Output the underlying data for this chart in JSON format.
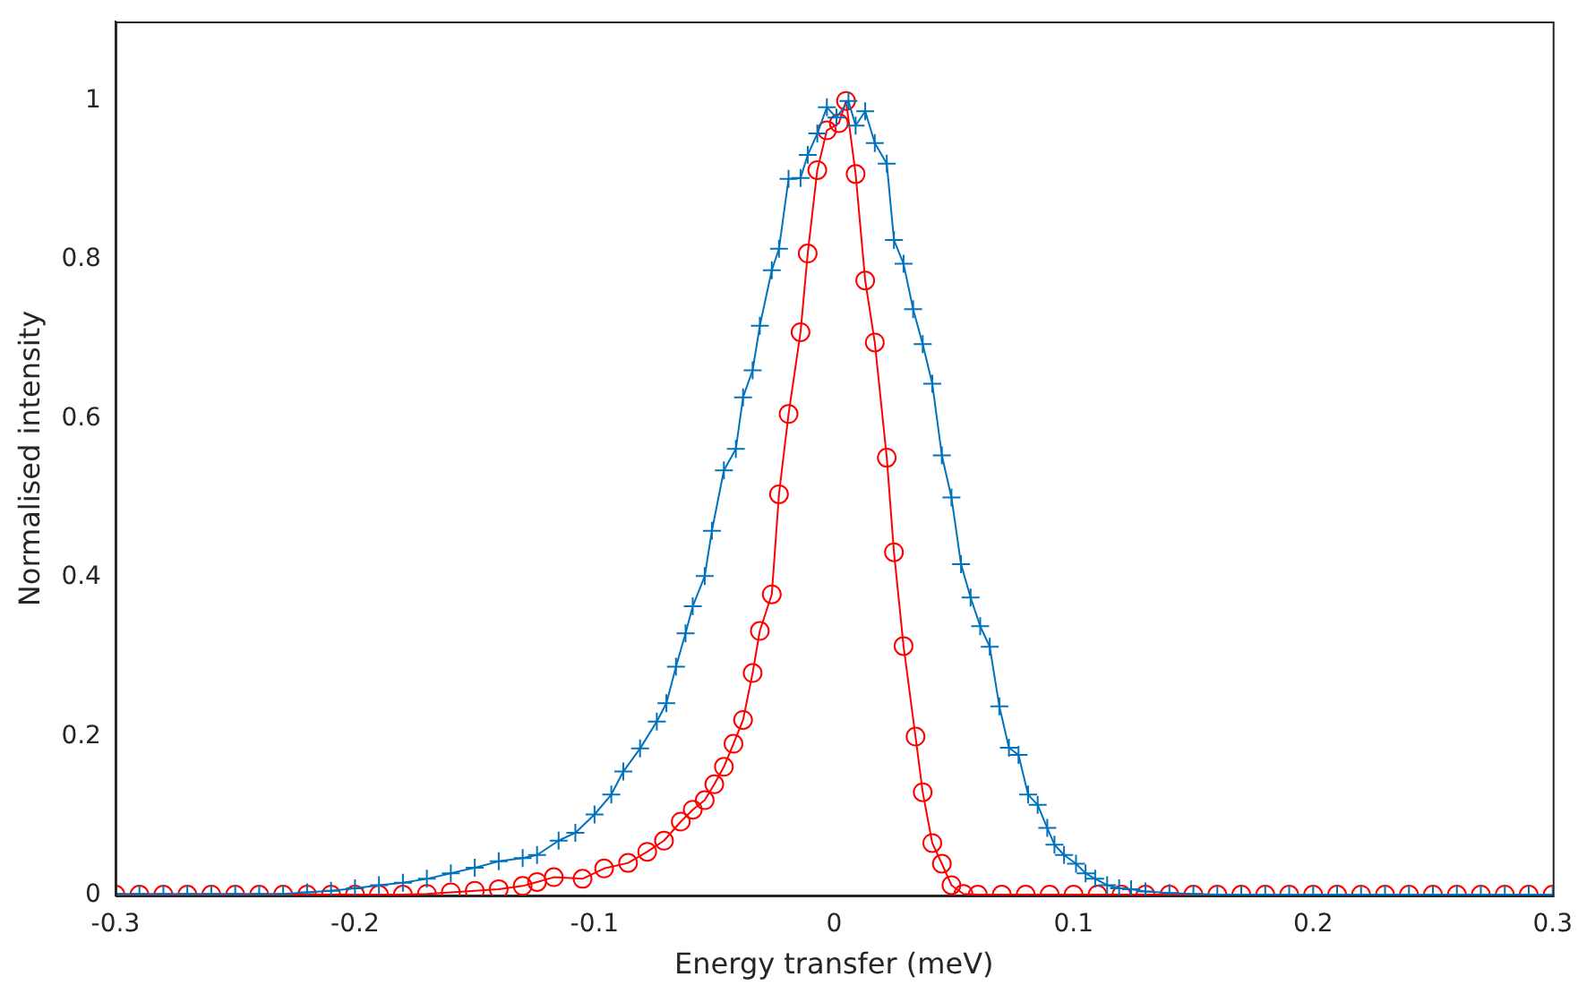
{
  "chart_data": {
    "type": "line",
    "xlabel": "Energy transfer (meV)",
    "ylabel": "Normalised intensity",
    "xlim": [
      -0.3,
      0.3
    ],
    "ylim": [
      0,
      1.1
    ],
    "xticks": [
      -0.3,
      -0.2,
      -0.1,
      0,
      0.1,
      0.2,
      0.3
    ],
    "yticks": [
      0,
      0.2,
      0.4,
      0.6,
      0.8,
      1
    ],
    "grid": false,
    "legend": false,
    "line_style": "solid",
    "series": [
      {
        "color": "#0072bd",
        "marker": "cross",
        "x": [
          -0.3,
          -0.29,
          -0.28,
          -0.27,
          -0.26,
          -0.25,
          -0.24,
          -0.23,
          -0.22,
          -0.21,
          -0.2,
          -0.19,
          -0.18,
          -0.17,
          -0.16,
          -0.15,
          -0.14,
          -0.13,
          -0.124,
          -0.115,
          -0.108,
          -0.1,
          -0.093,
          -0.088,
          -0.081,
          -0.074,
          -0.07,
          -0.066,
          -0.062,
          -0.059,
          -0.054,
          -0.051,
          -0.046,
          -0.041,
          -0.038,
          -0.034,
          -0.031,
          -0.026,
          -0.023,
          -0.019,
          -0.014,
          -0.011,
          -0.007,
          -0.003,
          0.001,
          0.006,
          0.009,
          0.013,
          0.017,
          0.022,
          0.025,
          0.029,
          0.033,
          0.037,
          0.041,
          0.045,
          0.049,
          0.053,
          0.057,
          0.061,
          0.065,
          0.069,
          0.073,
          0.077,
          0.081,
          0.085,
          0.089,
          0.092,
          0.096,
          0.101,
          0.105,
          0.109,
          0.114,
          0.119,
          0.124,
          0.13,
          0.14,
          0.15,
          0.16,
          0.17,
          0.18,
          0.19,
          0.2,
          0.21,
          0.22,
          0.23,
          0.24,
          0.25,
          0.26,
          0.27,
          0.28,
          0.29,
          0.3
        ],
        "values": [
          0.002,
          0.002,
          0.002,
          0.002,
          0.002,
          0.002,
          0.002,
          0.002,
          0.004,
          0.006,
          0.009,
          0.013,
          0.016,
          0.021,
          0.028,
          0.035,
          0.043,
          0.047,
          0.051,
          0.069,
          0.079,
          0.102,
          0.127,
          0.156,
          0.185,
          0.219,
          0.242,
          0.288,
          0.33,
          0.364,
          0.402,
          0.459,
          0.535,
          0.562,
          0.627,
          0.661,
          0.717,
          0.787,
          0.814,
          0.902,
          0.903,
          0.932,
          0.959,
          0.992,
          0.979,
          1.0,
          0.969,
          0.987,
          0.947,
          0.921,
          0.825,
          0.795,
          0.738,
          0.694,
          0.644,
          0.554,
          0.501,
          0.417,
          0.375,
          0.339,
          0.313,
          0.238,
          0.186,
          0.177,
          0.127,
          0.114,
          0.085,
          0.064,
          0.051,
          0.04,
          0.028,
          0.021,
          0.013,
          0.009,
          0.008,
          0.005,
          0.003,
          0.002,
          0.001,
          0.001,
          0.001,
          0.001,
          0.001,
          0.001,
          0.001,
          0.001,
          0.001,
          0.001,
          0.001,
          0.001,
          0.001,
          0.001,
          0.001
        ]
      },
      {
        "color": "#ff0000",
        "marker": "circle",
        "x": [
          -0.3,
          -0.29,
          -0.28,
          -0.27,
          -0.26,
          -0.25,
          -0.24,
          -0.23,
          -0.22,
          -0.21,
          -0.2,
          -0.19,
          -0.18,
          -0.17,
          -0.16,
          -0.15,
          -0.14,
          -0.13,
          -0.124,
          -0.117,
          -0.105,
          -0.096,
          -0.086,
          -0.078,
          -0.071,
          -0.064,
          -0.059,
          -0.054,
          -0.05,
          -0.046,
          -0.042,
          -0.038,
          -0.034,
          -0.031,
          -0.026,
          -0.023,
          -0.019,
          -0.014,
          -0.011,
          -0.007,
          -0.003,
          0.002,
          0.005,
          0.009,
          0.013,
          0.017,
          0.022,
          0.025,
          0.029,
          0.034,
          0.037,
          0.041,
          0.045,
          0.049,
          0.054,
          0.06,
          0.07,
          0.08,
          0.09,
          0.1,
          0.11,
          0.12,
          0.13,
          0.14,
          0.15,
          0.16,
          0.17,
          0.18,
          0.19,
          0.2,
          0.21,
          0.22,
          0.23,
          0.24,
          0.25,
          0.26,
          0.27,
          0.28,
          0.29,
          0.3
        ],
        "values": [
          0.001,
          0.001,
          0.001,
          0.001,
          0.001,
          0.001,
          0.001,
          0.001,
          0.001,
          0.001,
          0.001,
          0.001,
          0.001,
          0.002,
          0.004,
          0.006,
          0.008,
          0.012,
          0.017,
          0.023,
          0.021,
          0.034,
          0.041,
          0.055,
          0.069,
          0.093,
          0.108,
          0.12,
          0.14,
          0.162,
          0.191,
          0.221,
          0.28,
          0.333,
          0.379,
          0.505,
          0.606,
          0.709,
          0.808,
          0.913,
          0.963,
          0.972,
          1.0,
          0.908,
          0.774,
          0.696,
          0.551,
          0.432,
          0.314,
          0.2,
          0.13,
          0.066,
          0.04,
          0.013,
          0.002,
          0.001,
          0.001,
          0.001,
          0.001,
          0.001,
          0.001,
          0.001,
          0.001,
          0.001,
          0.001,
          0.001,
          0.001,
          0.001,
          0.001,
          0.001,
          0.001,
          0.001,
          0.001,
          0.001,
          0.001,
          0.001,
          0.001,
          0.001,
          0.001,
          0.001
        ]
      }
    ]
  }
}
